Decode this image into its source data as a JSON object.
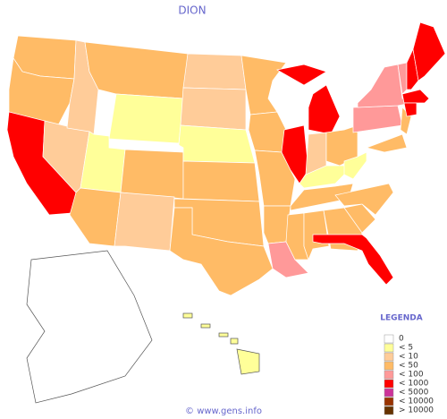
{
  "title": "DION",
  "legend": {
    "title": "LEGENDA",
    "items": [
      {
        "label": "0",
        "color": "#ffffff"
      },
      {
        "label": "< 5",
        "color": "#ffff99"
      },
      {
        "label": "< 10",
        "color": "#ffcc99"
      },
      {
        "label": "< 50",
        "color": "#ffbb66"
      },
      {
        "label": "< 100",
        "color": "#ff9999"
      },
      {
        "label": "< 1000",
        "color": "#ff0000"
      },
      {
        "label": "< 5000",
        "color": "#cc3399"
      },
      {
        "label": "< 10000",
        "color": "#993300"
      },
      {
        "label": "> 10000",
        "color": "#663300"
      }
    ]
  },
  "state_levels": [
    3,
    3,
    5,
    2,
    2,
    3,
    1,
    1,
    3,
    3,
    2,
    2,
    2,
    1,
    3,
    3,
    3,
    3,
    3,
    3,
    3,
    4,
    5,
    5,
    2,
    3,
    1,
    3,
    3,
    3,
    3,
    5,
    3,
    3,
    1,
    4,
    4,
    3,
    3,
    4,
    5,
    5,
    5,
    5,
    5,
    0,
    1
  ],
  "footer": "© www.gens.info"
}
